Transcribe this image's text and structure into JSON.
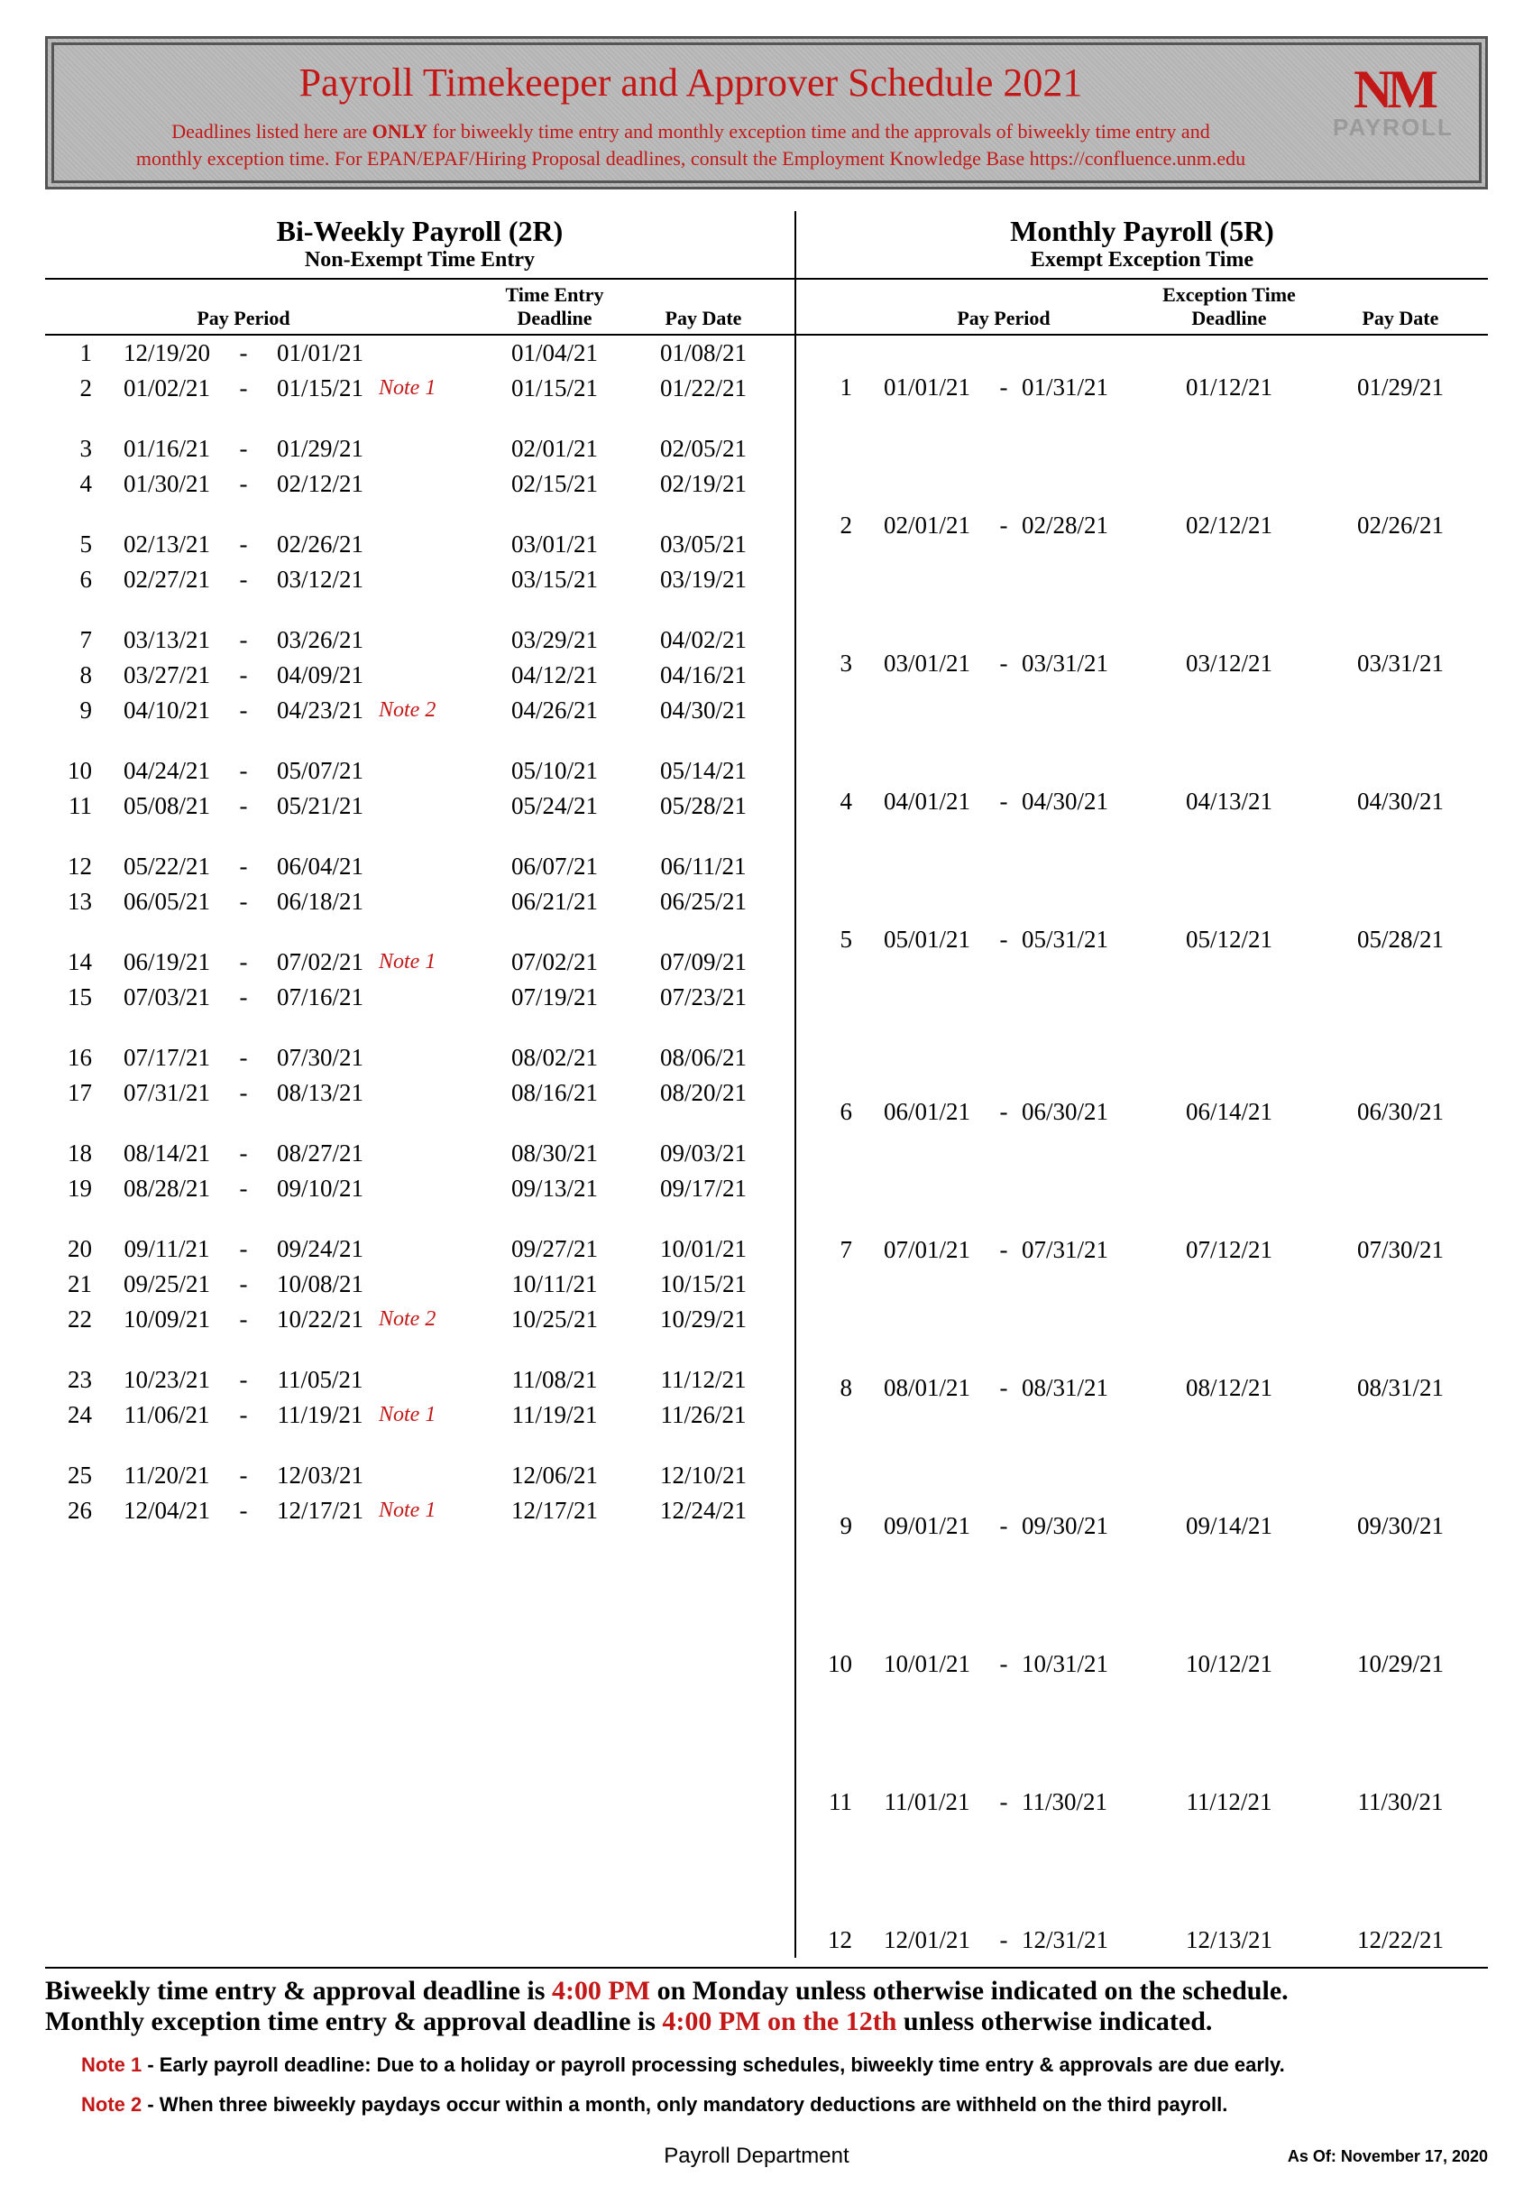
{
  "banner": {
    "title": "Payroll Timekeeper and Approver Schedule 2021",
    "sub_a": "Deadlines listed here are ",
    "sub_bold": "ONLY",
    "sub_b": " for biweekly time entry and monthly exception time and the approvals of biweekly time entry and",
    "sub_c": "monthly exception time. For EPAN/EPAF/Hiring Proposal deadlines, consult the Employment Knowledge Base https://confluence.unm.edu",
    "logo_top": "NM",
    "logo_word": "PAYROLL"
  },
  "headers": {
    "left_title": "Bi-Weekly Payroll (2R)",
    "left_sub": "Non-Exempt Time Entry",
    "right_title": "Monthly Payroll (5R)",
    "right_sub": "Exempt Exception Time",
    "pay_period": "Pay Period",
    "time_entry1": "Time Entry",
    "time_entry2": "Deadline",
    "exc_time1": "Exception Time",
    "exc_time2": "Deadline",
    "pay_date": "Pay Date"
  },
  "biweekly": [
    {
      "n": "1",
      "from": "12/19/20",
      "to": "01/01/21",
      "note": "",
      "deadline": "01/04/21",
      "paydate": "01/08/21"
    },
    {
      "n": "2",
      "from": "01/02/21",
      "to": "01/15/21",
      "note": "Note 1",
      "deadline": "01/15/21",
      "paydate": "01/22/21"
    },
    {
      "spacer": true
    },
    {
      "n": "3",
      "from": "01/16/21",
      "to": "01/29/21",
      "note": "",
      "deadline": "02/01/21",
      "paydate": "02/05/21"
    },
    {
      "n": "4",
      "from": "01/30/21",
      "to": "02/12/21",
      "note": "",
      "deadline": "02/15/21",
      "paydate": "02/19/21"
    },
    {
      "spacer": true
    },
    {
      "n": "5",
      "from": "02/13/21",
      "to": "02/26/21",
      "note": "",
      "deadline": "03/01/21",
      "paydate": "03/05/21"
    },
    {
      "n": "6",
      "from": "02/27/21",
      "to": "03/12/21",
      "note": "",
      "deadline": "03/15/21",
      "paydate": "03/19/21"
    },
    {
      "spacer": true
    },
    {
      "n": "7",
      "from": "03/13/21",
      "to": "03/26/21",
      "note": "",
      "deadline": "03/29/21",
      "paydate": "04/02/21"
    },
    {
      "n": "8",
      "from": "03/27/21",
      "to": "04/09/21",
      "note": "",
      "deadline": "04/12/21",
      "paydate": "04/16/21"
    },
    {
      "n": "9",
      "from": "04/10/21",
      "to": "04/23/21",
      "note": "Note 2",
      "deadline": "04/26/21",
      "paydate": "04/30/21"
    },
    {
      "spacer": true
    },
    {
      "n": "10",
      "from": "04/24/21",
      "to": "05/07/21",
      "note": "",
      "deadline": "05/10/21",
      "paydate": "05/14/21"
    },
    {
      "n": "11",
      "from": "05/08/21",
      "to": "05/21/21",
      "note": "",
      "deadline": "05/24/21",
      "paydate": "05/28/21"
    },
    {
      "spacer": true
    },
    {
      "n": "12",
      "from": "05/22/21",
      "to": "06/04/21",
      "note": "",
      "deadline": "06/07/21",
      "paydate": "06/11/21"
    },
    {
      "n": "13",
      "from": "06/05/21",
      "to": "06/18/21",
      "note": "",
      "deadline": "06/21/21",
      "paydate": "06/25/21"
    },
    {
      "spacer": true
    },
    {
      "n": "14",
      "from": "06/19/21",
      "to": "07/02/21",
      "note": "Note 1",
      "deadline": "07/02/21",
      "paydate": "07/09/21"
    },
    {
      "n": "15",
      "from": "07/03/21",
      "to": "07/16/21",
      "note": "",
      "deadline": "07/19/21",
      "paydate": "07/23/21"
    },
    {
      "spacer": true
    },
    {
      "n": "16",
      "from": "07/17/21",
      "to": "07/30/21",
      "note": "",
      "deadline": "08/02/21",
      "paydate": "08/06/21"
    },
    {
      "n": "17",
      "from": "07/31/21",
      "to": "08/13/21",
      "note": "",
      "deadline": "08/16/21",
      "paydate": "08/20/21"
    },
    {
      "spacer": true
    },
    {
      "n": "18",
      "from": "08/14/21",
      "to": "08/27/21",
      "note": "",
      "deadline": "08/30/21",
      "paydate": "09/03/21"
    },
    {
      "n": "19",
      "from": "08/28/21",
      "to": "09/10/21",
      "note": "",
      "deadline": "09/13/21",
      "paydate": "09/17/21"
    },
    {
      "spacer": true
    },
    {
      "n": "20",
      "from": "09/11/21",
      "to": "09/24/21",
      "note": "",
      "deadline": "09/27/21",
      "paydate": "10/01/21"
    },
    {
      "n": "21",
      "from": "09/25/21",
      "to": "10/08/21",
      "note": "",
      "deadline": "10/11/21",
      "paydate": "10/15/21"
    },
    {
      "n": "22",
      "from": "10/09/21",
      "to": "10/22/21",
      "note": "Note 2",
      "deadline": "10/25/21",
      "paydate": "10/29/21"
    },
    {
      "spacer": true
    },
    {
      "n": "23",
      "from": "10/23/21",
      "to": "11/05/21",
      "note": "",
      "deadline": "11/08/21",
      "paydate": "11/12/21"
    },
    {
      "n": "24",
      "from": "11/06/21",
      "to": "11/19/21",
      "note": "Note 1",
      "deadline": "11/19/21",
      "paydate": "11/26/21"
    },
    {
      "spacer": true
    },
    {
      "n": "25",
      "from": "11/20/21",
      "to": "12/03/21",
      "note": "",
      "deadline": "12/06/21",
      "paydate": "12/10/21"
    },
    {
      "n": "26",
      "from": "12/04/21",
      "to": "12/17/21",
      "note": "Note 1",
      "deadline": "12/17/21",
      "paydate": "12/24/21"
    }
  ],
  "monthly": [
    {
      "spacer": true,
      "h": 1
    },
    {
      "n": "1",
      "from": "01/01/21",
      "to": "01/31/21",
      "deadline": "01/12/21",
      "paydate": "01/29/21"
    },
    {
      "spacer": true,
      "h": 3
    },
    {
      "n": "2",
      "from": "02/01/21",
      "to": "02/28/21",
      "deadline": "02/12/21",
      "paydate": "02/26/21"
    },
    {
      "spacer": true,
      "h": 3
    },
    {
      "n": "3",
      "from": "03/01/21",
      "to": "03/31/21",
      "deadline": "03/12/21",
      "paydate": "03/31/21"
    },
    {
      "spacer": true,
      "h": 3
    },
    {
      "n": "4",
      "from": "04/01/21",
      "to": "04/30/21",
      "deadline": "04/13/21",
      "paydate": "04/30/21"
    },
    {
      "spacer": true,
      "h": 3
    },
    {
      "n": "5",
      "from": "05/01/21",
      "to": "05/31/21",
      "deadline": "05/12/21",
      "paydate": "05/28/21"
    },
    {
      "spacer": true,
      "h": 4
    },
    {
      "n": "6",
      "from": "06/01/21",
      "to": "06/30/21",
      "deadline": "06/14/21",
      "paydate": "06/30/21"
    },
    {
      "spacer": true,
      "h": 3
    },
    {
      "n": "7",
      "from": "07/01/21",
      "to": "07/31/21",
      "deadline": "07/12/21",
      "paydate": "07/30/21"
    },
    {
      "spacer": true,
      "h": 3
    },
    {
      "n": "8",
      "from": "08/01/21",
      "to": "08/31/21",
      "deadline": "08/12/21",
      "paydate": "08/31/21"
    },
    {
      "spacer": true,
      "h": 3
    },
    {
      "n": "9",
      "from": "09/01/21",
      "to": "09/30/21",
      "deadline": "09/14/21",
      "paydate": "09/30/21"
    },
    {
      "spacer": true,
      "h": 3
    },
    {
      "n": "10",
      "from": "10/01/21",
      "to": "10/31/21",
      "deadline": "10/12/21",
      "paydate": "10/29/21"
    },
    {
      "spacer": true,
      "h": 3
    },
    {
      "n": "11",
      "from": "11/01/21",
      "to": "11/30/21",
      "deadline": "11/12/21",
      "paydate": "11/30/21"
    },
    {
      "spacer": true,
      "h": 3
    },
    {
      "n": "12",
      "from": "12/01/21",
      "to": "12/31/21",
      "deadline": "12/13/21",
      "paydate": "12/22/21"
    }
  ],
  "foot": {
    "line1a": "Biweekly time entry & approval deadline is ",
    "line1b": "4:00 PM",
    "line1c": " on Monday unless otherwise indicated on the schedule.",
    "line2a": "Monthly exception time entry & approval deadline is ",
    "line2b": "4:00 PM on the 12th",
    "line2c": " unless otherwise indicated.",
    "note1_label": "Note 1",
    "note1_text": " - Early payroll deadline:  Due to a holiday or payroll processing schedules, biweekly time entry & approvals are due early.",
    "note2_label": "Note 2",
    "note2_text": " - When three biweekly paydays occur within a month, only mandatory deductions are withheld on the third payroll.",
    "dept": "Payroll Department",
    "asof": "As Of: November 17, 2020"
  }
}
